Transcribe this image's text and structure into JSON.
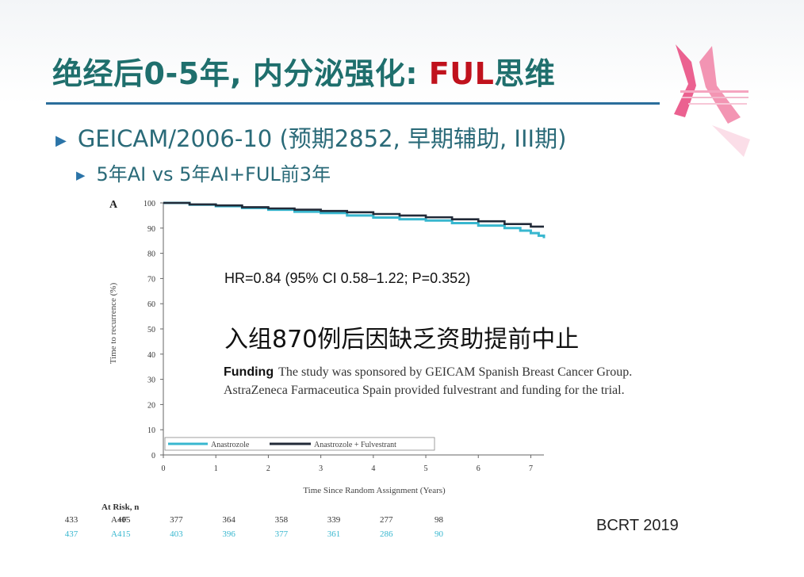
{
  "slide": {
    "title_prefix": "绝经后0-5年, 内分泌强化: ",
    "title_accent": "FUL",
    "title_suffix": "思维",
    "bullet1": "GEICAM/2006-10  (预期2852, 早期辅助, III期)",
    "bullet2": "5年AI vs 5年AI+FUL前3年",
    "hr_text": "HR=0.84 (95% CI 0.58–1.22; P=0.352)",
    "note_cn": "入组870例后因缺乏资助提前中止",
    "funding_label": "Funding",
    "funding_text": "The study was sponsored by GEICAM Spanish Breast Cancer Group. AstraZeneca Farmaceutica Spain provided fulvestrant and funding for the trial.",
    "source": "BCRT 2019"
  },
  "colors": {
    "title": "#1f6f6d",
    "accent": "#c0121d",
    "rule": "#2b6e9b",
    "anastrozole": "#38b7cf",
    "combo": "#222a38"
  },
  "chart_data": {
    "type": "line",
    "panel_label": "A",
    "ylabel": "Time to recurrence (%)",
    "xlabel": "Time Since Random Assignment (Years)",
    "xlim": [
      0,
      7.25
    ],
    "ylim": [
      0,
      100
    ],
    "xticks": [
      0,
      1,
      2,
      3,
      4,
      5,
      6,
      7
    ],
    "yticks": [
      0,
      10,
      20,
      30,
      40,
      50,
      60,
      70,
      80,
      90,
      100
    ],
    "grid": false,
    "legend_position": "bottom-left",
    "series": [
      {
        "name": "Anastrozole",
        "color": "#38b7cf",
        "x": [
          0,
          0.5,
          1,
          1.5,
          2,
          2.5,
          3,
          3.5,
          4,
          4.5,
          5,
          5.5,
          6,
          6.5,
          6.8,
          7.0,
          7.15,
          7.25
        ],
        "y": [
          100,
          99.3,
          98.7,
          98,
          97.3,
          96.5,
          96,
          95,
          94.2,
          93.5,
          93,
          92,
          91,
          90,
          89,
          88,
          87,
          86
        ]
      },
      {
        "name": "Anastrozole + Fulvestrant",
        "color": "#222a38",
        "x": [
          0,
          0.5,
          1,
          1.5,
          2,
          2.5,
          3,
          3.5,
          4,
          4.5,
          5,
          5.5,
          6,
          6.5,
          7.0,
          7.25
        ],
        "y": [
          100,
          99.4,
          99,
          98.3,
          97.8,
          97.3,
          96.8,
          96.3,
          95.6,
          95,
          94.3,
          93.5,
          92.7,
          91.6,
          90.6,
          90.6
        ]
      }
    ],
    "legend_labels": [
      "Anastrozole",
      "Anastrozole + Fulvestrant"
    ],
    "risk_table": {
      "title": "At Risk, n",
      "rows": [
        {
          "label": "A+F",
          "values": [
            "433",
            "405",
            "377",
            "364",
            "358",
            "339",
            "277",
            "98"
          ]
        },
        {
          "label": "A",
          "values": [
            "437",
            "415",
            "403",
            "396",
            "377",
            "361",
            "286",
            "90"
          ]
        }
      ]
    }
  }
}
